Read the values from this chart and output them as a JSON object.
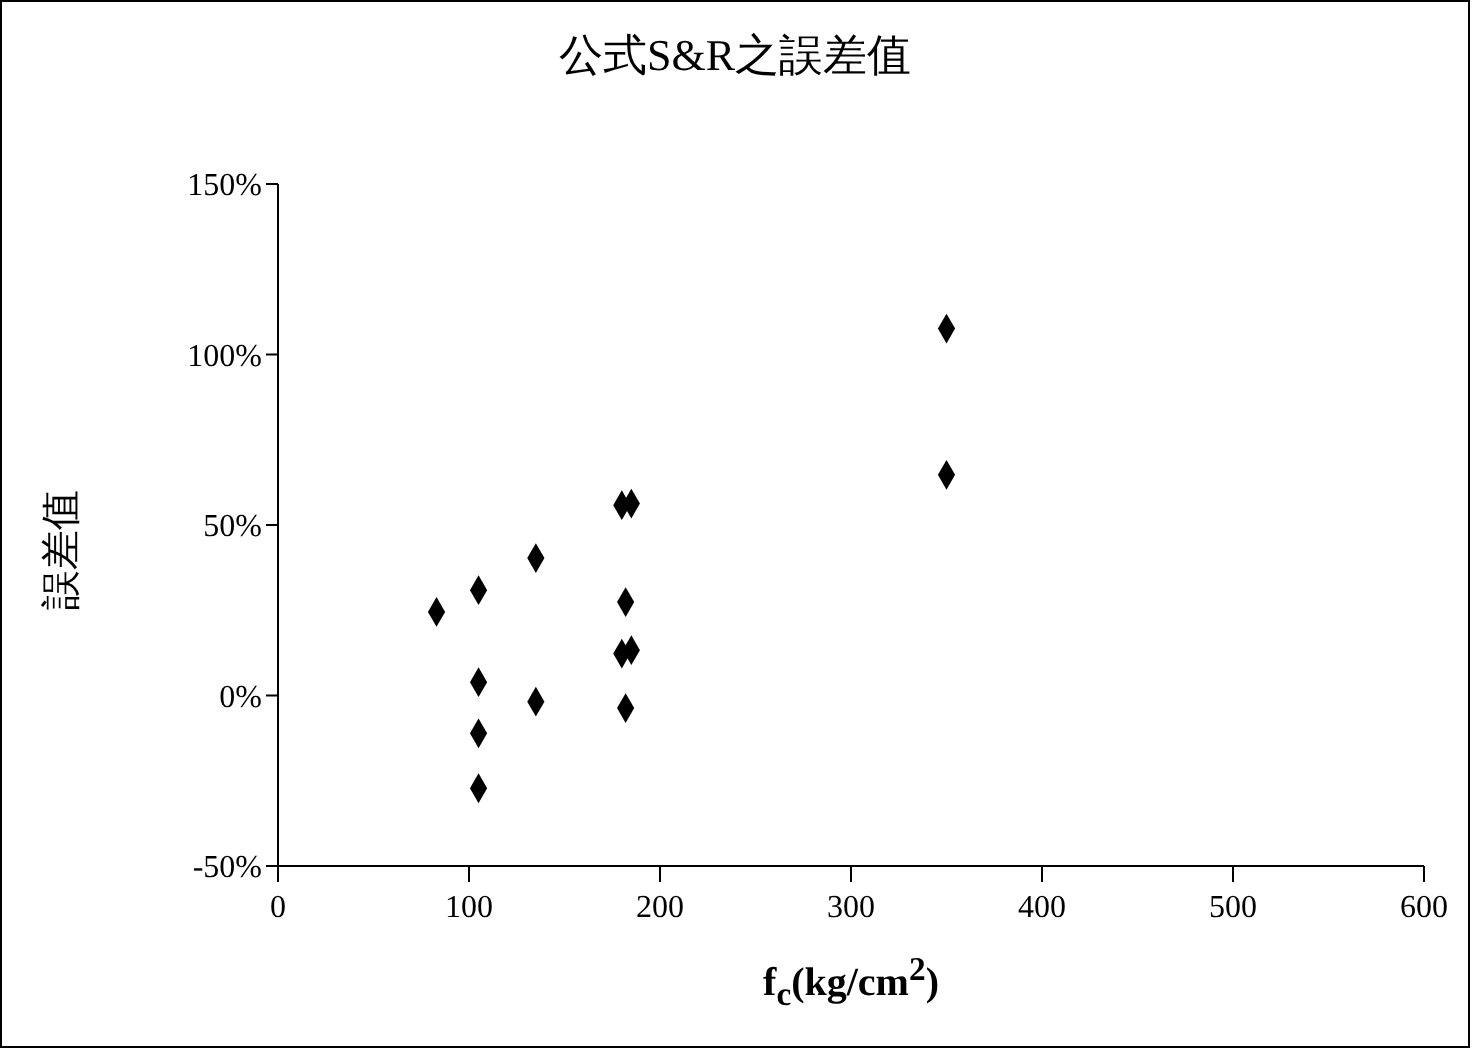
{
  "chart_data": {
    "type": "scatter",
    "title": "公式S&R之誤差值",
    "xlabel": "f$_{c}$(kg/cm$^{2}$)",
    "ylabel": "誤差值",
    "x": [
      83,
      105,
      135,
      180,
      185,
      182,
      180,
      185,
      105,
      135,
      182,
      105,
      105,
      350,
      350
    ],
    "values": [
      24.5,
      30.9,
      40.3,
      55.8,
      56.3,
      27.4,
      12.3,
      13.3,
      3.9,
      -1.8,
      -3.7,
      -11.1,
      -27.2,
      107.6,
      64.7
    ],
    "color": "#000000",
    "marker": "diamond",
    "xlim": [
      0,
      600
    ],
    "xticks": [
      0,
      100,
      200,
      300,
      400,
      500,
      600
    ],
    "ylim": [
      -50,
      150
    ],
    "yticks": [
      {
        "value": -50,
        "label": "-50%"
      },
      {
        "value": 0,
        "label": "0%"
      },
      {
        "value": 50,
        "label": "50%"
      },
      {
        "value": 100,
        "label": "100%"
      },
      {
        "value": 150,
        "label": "150%"
      }
    ]
  }
}
